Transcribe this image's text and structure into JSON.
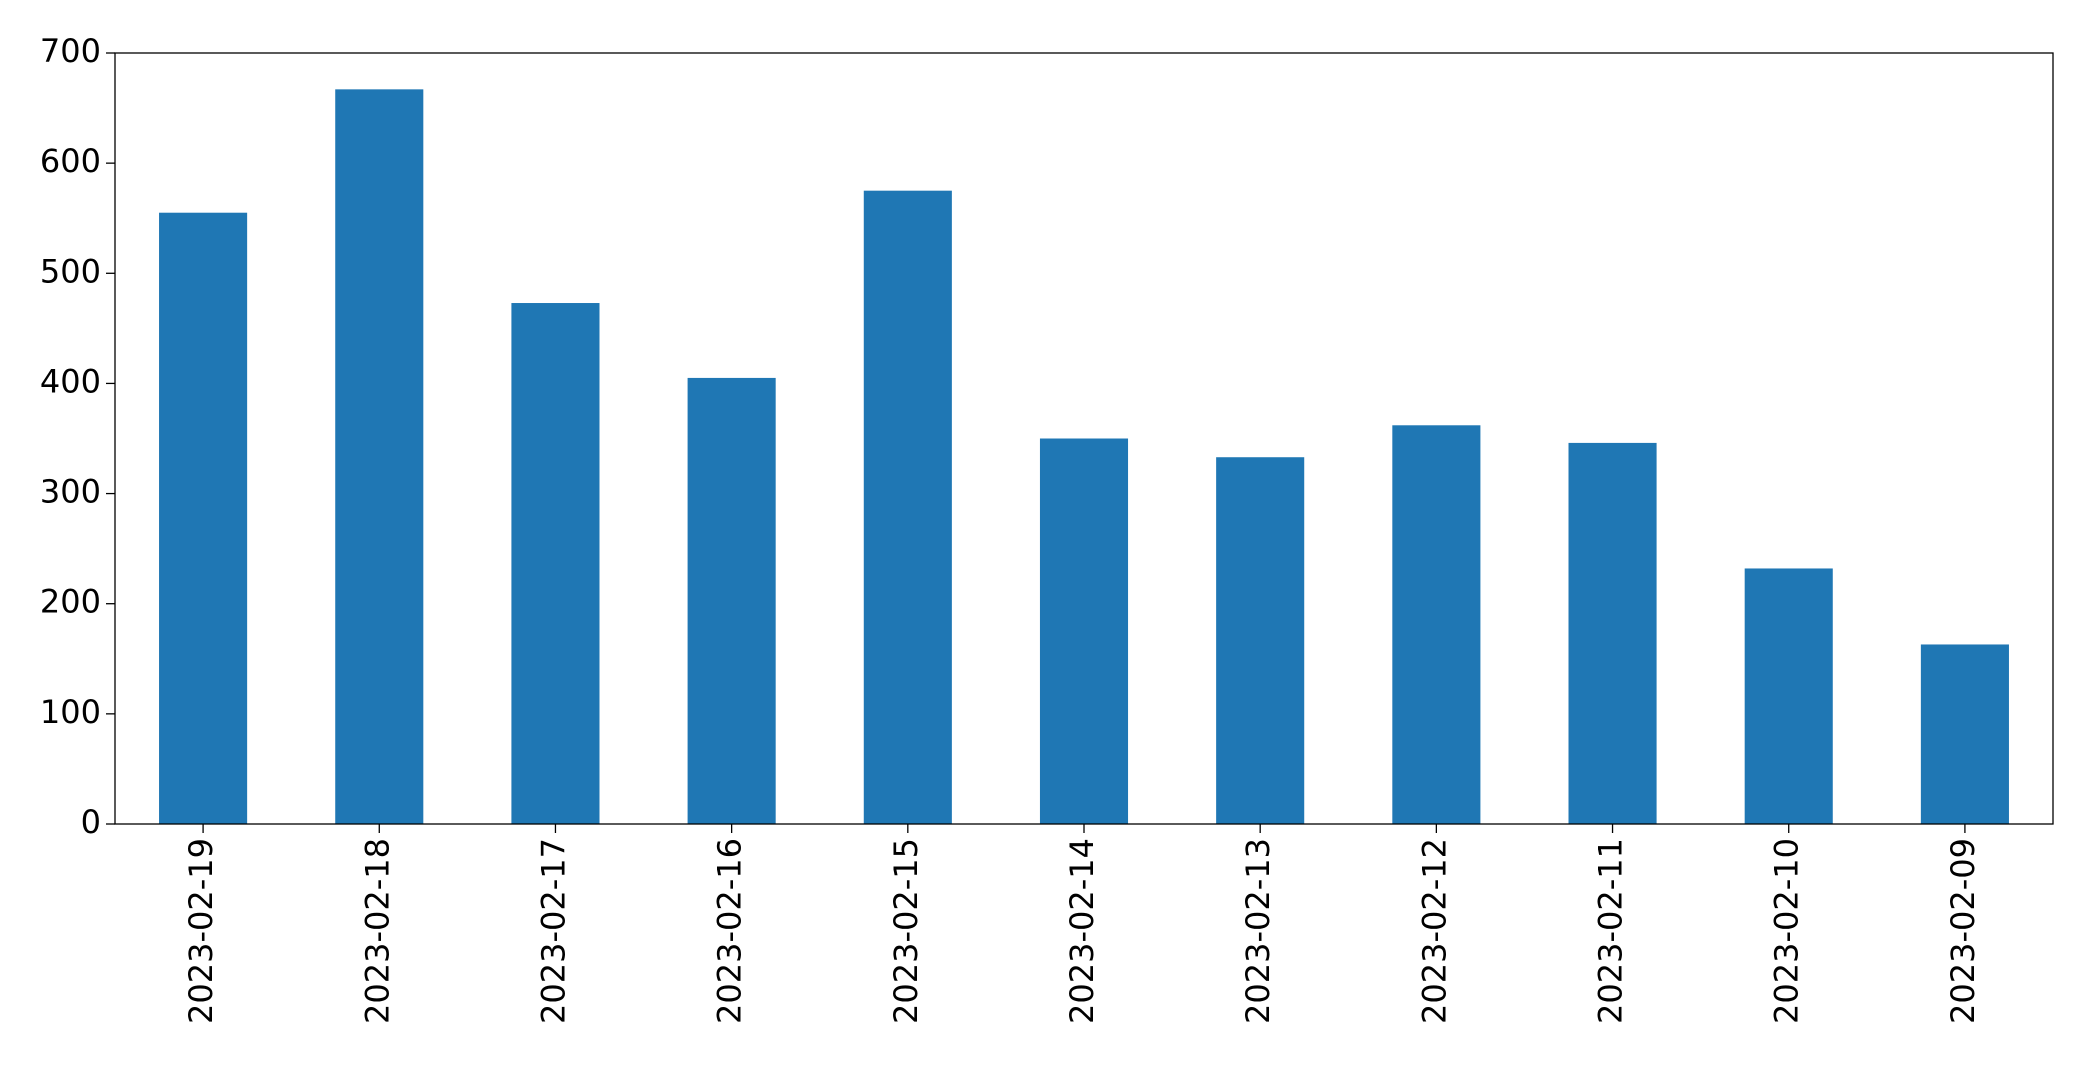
{
  "chart_data": {
    "type": "bar",
    "categories": [
      "2023-02-19",
      "2023-02-18",
      "2023-02-17",
      "2023-02-16",
      "2023-02-15",
      "2023-02-14",
      "2023-02-13",
      "2023-02-12",
      "2023-02-11",
      "2023-02-10",
      "2023-02-09"
    ],
    "values": [
      555,
      667,
      473,
      405,
      575,
      350,
      333,
      362,
      346,
      232,
      163
    ],
    "color": "#1f77b4",
    "ylim": [
      0,
      700
    ],
    "yticks": [
      0,
      100,
      200,
      300,
      400,
      500,
      600,
      700
    ],
    "grid": false
  }
}
